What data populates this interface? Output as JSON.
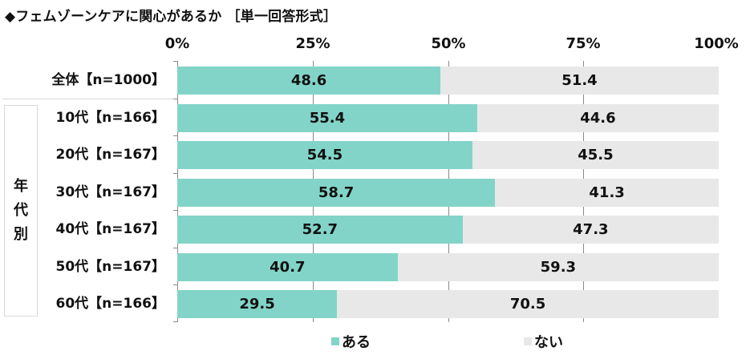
{
  "title": "◆フェムゾーンケアに関心があるか ［単一回答形式］",
  "axis": {
    "ticks": [
      "0%",
      "25%",
      "50%",
      "75%",
      "100%"
    ]
  },
  "group_label": [
    "年",
    "代",
    "別"
  ],
  "legend": [
    {
      "label": "ある",
      "color": "#82d4c9"
    },
    {
      "label": "ない",
      "color": "#e8e8e8"
    }
  ],
  "colors": {
    "yes": "#82d4c9",
    "no": "#e8e8e8",
    "axis": "#8a8a8a"
  },
  "rows": [
    {
      "label": "全体【n=1000】",
      "yes": "48.6",
      "no": "51.4"
    },
    {
      "label": "10代【n=166】",
      "yes": "55.4",
      "no": "44.6"
    },
    {
      "label": "20代【n=167】",
      "yes": "54.5",
      "no": "45.5"
    },
    {
      "label": "30代【n=167】",
      "yes": "58.7",
      "no": "41.3"
    },
    {
      "label": "40代【n=167】",
      "yes": "52.7",
      "no": "47.3"
    },
    {
      "label": "50代【n=167】",
      "yes": "40.7",
      "no": "59.3"
    },
    {
      "label": "60代【n=166】",
      "yes": "29.5",
      "no": "70.5"
    }
  ],
  "chart_data": {
    "type": "bar",
    "orientation": "horizontal",
    "stacked": true,
    "title": "◆フェムゾーンケアに関心があるか ［単一回答形式］",
    "categories": [
      "全体【n=1000】",
      "10代【n=166】",
      "20代【n=167】",
      "30代【n=167】",
      "40代【n=167】",
      "50代【n=167】",
      "60代【n=166】"
    ],
    "series": [
      {
        "name": "ある",
        "values": [
          48.6,
          55.4,
          54.5,
          58.7,
          52.7,
          40.7,
          29.5
        ]
      },
      {
        "name": "ない",
        "values": [
          51.4,
          44.6,
          45.5,
          41.3,
          47.3,
          59.3,
          70.5
        ]
      }
    ],
    "xlabel": "",
    "ylabel": "",
    "xlim": [
      0,
      100
    ],
    "x_tick_labels": [
      "0%",
      "25%",
      "50%",
      "75%",
      "100%"
    ],
    "grid": true,
    "legend_position": "bottom",
    "group_annotation": "年代別",
    "units": "%"
  }
}
